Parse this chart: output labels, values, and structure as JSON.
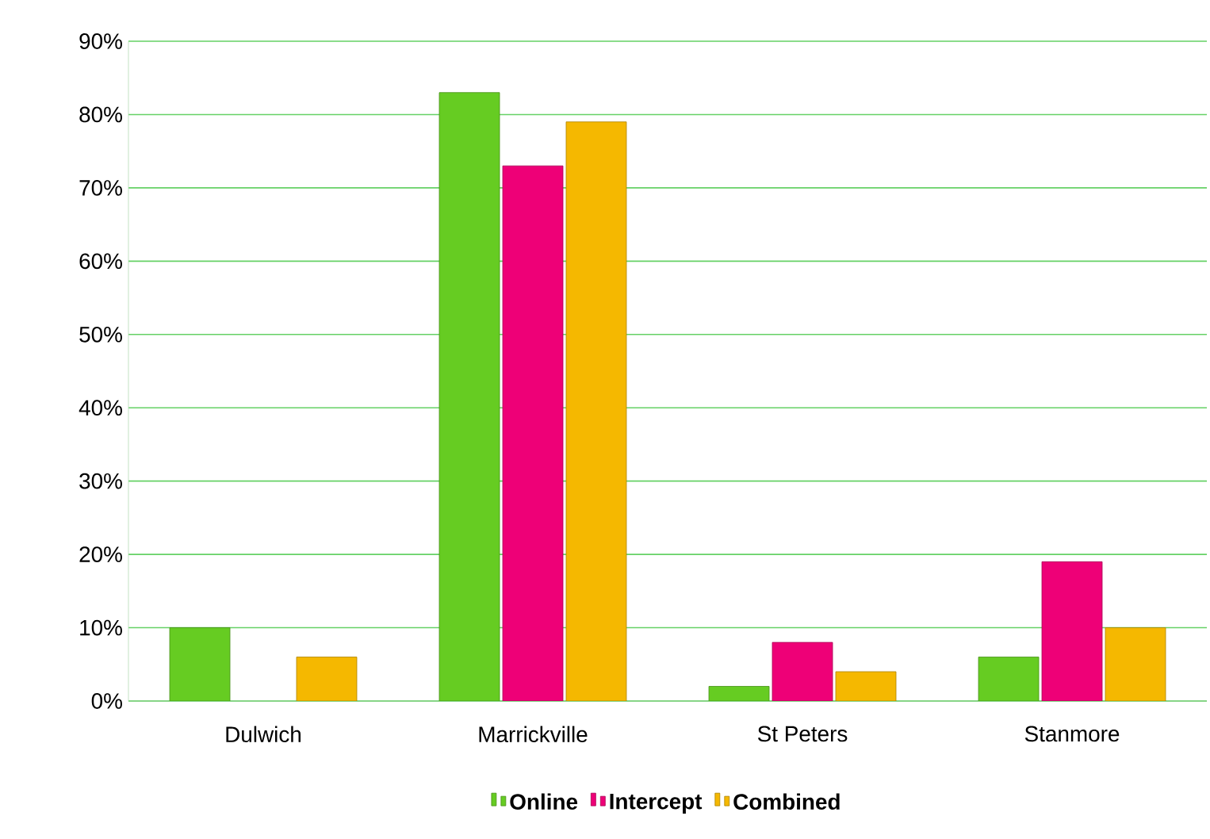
{
  "chart_data": {
    "type": "bar",
    "categories": [
      "Dulwich",
      "Marrickville",
      "St Peters",
      "Stanmore"
    ],
    "series": [
      {
        "name": "Online",
        "color": "#66cc22",
        "values": [
          10,
          83,
          2,
          6
        ]
      },
      {
        "name": "Intercept",
        "color": "#ee0077",
        "values": [
          null,
          73,
          8,
          19
        ]
      },
      {
        "name": "Combined",
        "color": "#f5b800",
        "values": [
          6,
          79,
          4,
          10
        ]
      }
    ],
    "ylim": [
      0,
      90
    ],
    "yticks": [
      {
        "value": 0,
        "label": "0%"
      },
      {
        "value": 10,
        "label": "10%"
      },
      {
        "value": 20,
        "label": "20%"
      },
      {
        "value": 30,
        "label": "30%"
      },
      {
        "value": 40,
        "label": "40%"
      },
      {
        "value": 50,
        "label": "50%"
      },
      {
        "value": 60,
        "label": "60%"
      },
      {
        "value": 70,
        "label": "70%"
      },
      {
        "value": 80,
        "label": "80%"
      },
      {
        "value": 90,
        "label": "90%"
      }
    ],
    "grid": "y",
    "legend": "bottom"
  }
}
